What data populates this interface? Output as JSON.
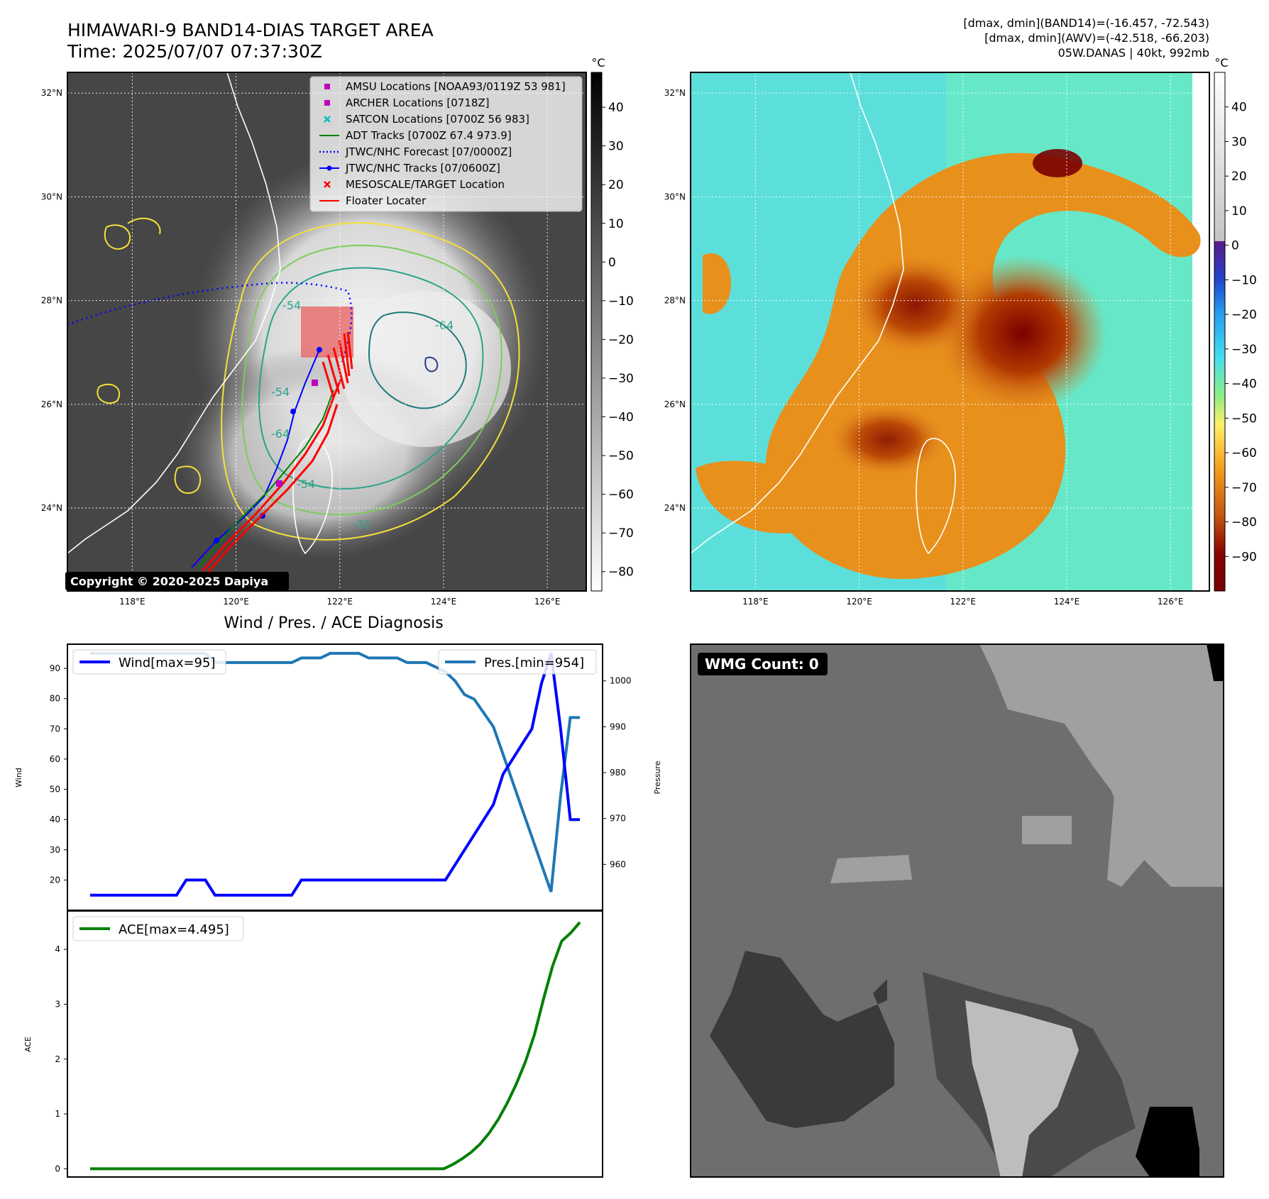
{
  "header": {
    "title_line1": "HIMAWARI-9 BAND14-DIAS TARGET AREA",
    "title_line2": "Time: 2025/07/07 07:37:30Z",
    "info_line1": "[dmax, dmin](BAND14)=(-16.457, -72.543)",
    "info_line2": "[dmax, dmin](AWV)=(-42.518, -66.203)",
    "info_line3": "05W.DANAS | 40kt, 992mb"
  },
  "copyright": "Copyright © 2020-2025 Dapiya",
  "wmg_count": "WMG Count: 0",
  "map_axes": {
    "lon_ticks": [
      "118°E",
      "120°E",
      "122°E",
      "124°E",
      "126°E"
    ],
    "lat_ticks": [
      "32°N",
      "30°N",
      "28°N",
      "26°N",
      "24°N"
    ],
    "lon_values": [
      118,
      120,
      122,
      124,
      126
    ],
    "lat_values": [
      32,
      30,
      28,
      26,
      24
    ],
    "lon_range": [
      116.75,
      126.75
    ],
    "lat_range": [
      22.4,
      32.4
    ]
  },
  "colorbar_left": {
    "unit": "°C",
    "ticks": [
      "40",
      "30",
      "20",
      "10",
      "0",
      "−10",
      "−20",
      "−30",
      "−40",
      "−50",
      "−60",
      "−70",
      "−80"
    ],
    "tick_values": [
      40,
      30,
      20,
      10,
      0,
      -10,
      -20,
      -30,
      -40,
      -50,
      -60,
      -70,
      -80
    ],
    "range": [
      -85,
      49
    ]
  },
  "colorbar_right": {
    "unit": "°C",
    "ticks": [
      "40",
      "30",
      "20",
      "10",
      "0",
      "−10",
      "−20",
      "−30",
      "−40",
      "−50",
      "−60",
      "−70",
      "−80",
      "−90"
    ],
    "tick_values": [
      40,
      30,
      20,
      10,
      0,
      -10,
      -20,
      -30,
      -40,
      -50,
      -60,
      -70,
      -80,
      -90
    ],
    "range": [
      -100,
      50
    ]
  },
  "map_legend": [
    {
      "label": "AMSU Locations [NOAA93/0119Z 53 981]",
      "kind": "square",
      "color": "#bf00bf"
    },
    {
      "label": "ARCHER Locations [0718Z]",
      "kind": "square",
      "color": "#bf00bf"
    },
    {
      "label": "SATCON Locations [0700Z 56 983]",
      "kind": "x",
      "color": "#00bfbf"
    },
    {
      "label": "ADT Tracks [0700Z 67.4 973.9]",
      "kind": "line",
      "color": "#008000"
    },
    {
      "label": "JTWC/NHC Forecast [07/0000Z]",
      "kind": "dotted",
      "color": "#0000ff"
    },
    {
      "label": "JTWC/NHC Tracks [07/0600Z]",
      "kind": "line-dot",
      "color": "#0000ff"
    },
    {
      "label": "MESOSCALE/TARGET Location",
      "kind": "x",
      "color": "#ff0000"
    },
    {
      "label": "Floater Locater",
      "kind": "line",
      "color": "#ff0000"
    }
  ],
  "contour_labels": [
    "-54",
    "-64",
    "-54",
    "-64",
    "-31",
    "-54"
  ],
  "diagnosis": {
    "title": "Wind / Pres. / ACE Diagnosis",
    "wind_label": "Wind",
    "pressure_label": "Pressure",
    "ace_label": "ACE",
    "wind_legend": "Wind[max=95]",
    "pres_legend": "Pres.[min=954]",
    "ace_legend": "ACE[max=4.495]"
  },
  "chart_data": [
    {
      "type": "line",
      "xlabel": "",
      "ylabel": "Wind",
      "ylim": [
        10,
        98
      ],
      "yticks": [
        20,
        30,
        40,
        50,
        60,
        70,
        80,
        90
      ],
      "series": [
        {
          "name": "Wind[max=95]",
          "color": "#0000ff",
          "values": [
            15,
            15,
            15,
            15,
            15,
            15,
            15,
            15,
            15,
            15,
            20,
            20,
            20,
            15,
            15,
            15,
            15,
            15,
            15,
            15,
            15,
            15,
            20,
            20,
            20,
            20,
            20,
            20,
            20,
            20,
            20,
            20,
            20,
            20,
            20,
            20,
            20,
            20,
            25,
            30,
            35,
            40,
            45,
            55,
            60,
            65,
            70,
            85,
            95,
            70,
            40,
            40
          ]
        }
      ],
      "legend": "upper left"
    },
    {
      "type": "line",
      "ylabel": "Pressure",
      "ylim": [
        950,
        1008
      ],
      "yticks": [
        960,
        970,
        980,
        990,
        1000
      ],
      "series": [
        {
          "name": "Pres.[min=954]",
          "color": "#1f77b4",
          "values": [
            1006,
            1006,
            1006,
            1006,
            1006,
            1006,
            1006,
            1006,
            1006,
            1006,
            1006,
            1006,
            1006,
            1004,
            1004,
            1004,
            1004,
            1004,
            1004,
            1004,
            1004,
            1004,
            1005,
            1005,
            1005,
            1006,
            1006,
            1006,
            1006,
            1005,
            1005,
            1005,
            1005,
            1004,
            1004,
            1004,
            1003,
            1002,
            1000,
            997,
            996,
            993,
            990,
            984,
            978,
            972,
            966,
            960,
            954,
            975,
            992,
            992
          ]
        }
      ],
      "legend": "upper right"
    },
    {
      "type": "line",
      "xlabel": "",
      "ylabel": "ACE",
      "ylim": [
        -0.15,
        4.7
      ],
      "yticks": [
        0,
        1,
        2,
        3,
        4
      ],
      "series": [
        {
          "name": "ACE[max=4.495]",
          "color": "#008000",
          "values": [
            0,
            0,
            0,
            0,
            0,
            0,
            0,
            0,
            0,
            0,
            0,
            0,
            0,
            0,
            0,
            0,
            0,
            0,
            0,
            0,
            0,
            0,
            0,
            0,
            0,
            0,
            0,
            0,
            0,
            0,
            0,
            0,
            0,
            0,
            0,
            0,
            0,
            0,
            0,
            0,
            0.08,
            0.18,
            0.3,
            0.45,
            0.65,
            0.9,
            1.2,
            1.55,
            1.95,
            2.45,
            3.1,
            3.7,
            4.15,
            4.3,
            4.495
          ]
        }
      ],
      "legend": "upper left"
    }
  ]
}
